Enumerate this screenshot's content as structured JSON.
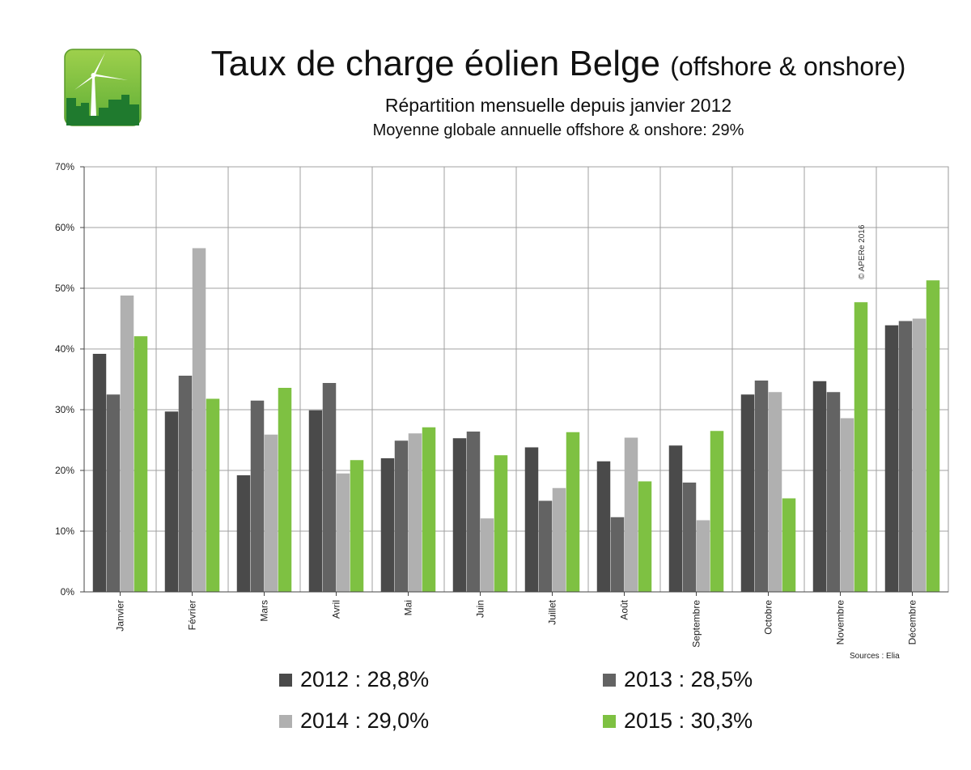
{
  "header": {
    "title_main": "Taux de charge éolien Belge",
    "title_suffix": "(offshore & onshore)",
    "subtitle": "Répartition mensuelle depuis janvier 2012",
    "subtitle2": "Moyenne globale annuelle offshore & onshore: 29%"
  },
  "logo": {
    "icon": "wind-turbine-city-icon",
    "colors": {
      "bg_top": "#8cc63f",
      "bg_bottom": "#2f8f3a",
      "city": "#1f7a2e"
    }
  },
  "chart_data": {
    "type": "bar",
    "title": "",
    "xlabel": "",
    "ylabel": "",
    "ylim": [
      0,
      70
    ],
    "yticks": [
      0,
      10,
      20,
      30,
      40,
      50,
      60,
      70
    ],
    "ytick_labels": [
      "0%",
      "10%",
      "20%",
      "30%",
      "40%",
      "50%",
      "60%",
      "70%"
    ],
    "grid": true,
    "legend_position": "bottom",
    "categories": [
      "Janvier",
      "Février",
      "Mars",
      "Avril",
      "Mai",
      "Juin",
      "Juillet",
      "Août",
      "Septembre",
      "Octobre",
      "Novembre",
      "Décembre"
    ],
    "series": [
      {
        "name": "2012",
        "legend_label": "2012 : 28,8%",
        "color": "#4a4a4a",
        "values": [
          39.2,
          29.7,
          19.2,
          29.9,
          22.0,
          25.3,
          23.8,
          21.5,
          24.1,
          32.5,
          34.7,
          43.9
        ]
      },
      {
        "name": "2013",
        "legend_label": "2013 : 28,5%",
        "color": "#636363",
        "values": [
          32.5,
          35.6,
          31.5,
          34.4,
          24.9,
          26.4,
          15.0,
          12.3,
          18.0,
          34.8,
          32.9,
          44.6
        ]
      },
      {
        "name": "2014",
        "legend_label": "2014 : 29,0%",
        "color": "#b0b0b0",
        "values": [
          48.8,
          56.6,
          25.9,
          19.5,
          26.1,
          12.1,
          17.1,
          25.4,
          11.8,
          32.9,
          28.6,
          45.0
        ]
      },
      {
        "name": "2015",
        "legend_label": "2015 : 30,3%",
        "color": "#7ec142",
        "values": [
          42.1,
          31.8,
          33.6,
          21.7,
          27.1,
          22.5,
          26.3,
          18.2,
          26.5,
          15.4,
          47.7,
          51.3
        ]
      }
    ],
    "annotations": {
      "copyright": "© APERe 2016",
      "source": "Sources : Elia"
    }
  }
}
